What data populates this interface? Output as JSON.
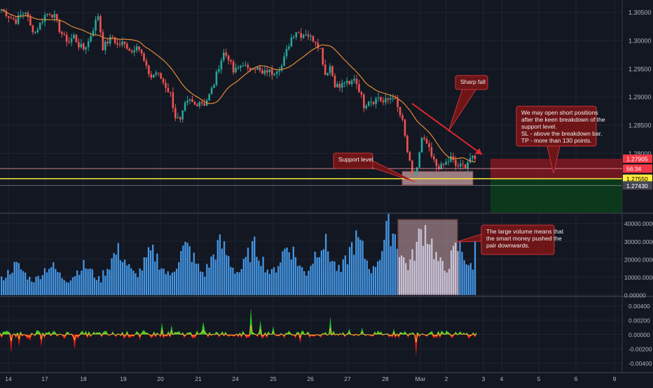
{
  "chart_data": {
    "type": "candlestick",
    "x_axis": {
      "ticks": [
        "14",
        "17",
        "18",
        "19",
        "20",
        "21",
        "24",
        "25",
        "26",
        "27",
        "28",
        "Mar",
        "2",
        "3",
        "4",
        "5",
        "6",
        "9"
      ]
    },
    "price_panel": {
      "y_ticks": [
        "1.30500",
        "1.30000",
        "1.29500",
        "1.29000",
        "1.28500",
        "1.28000"
      ],
      "ylim": [
        1.2695,
        1.3072
      ],
      "support_level": 1.2755,
      "price_labels": [
        {
          "text": "1.27905",
          "value": 1.27905,
          "color": "#f23645",
          "text_color": "#ffffff"
        },
        {
          "text": "56:34",
          "value": 1.2773,
          "color": "#f23645",
          "text_color": "#ffffff"
        },
        {
          "text": "1.27550",
          "value": 1.2755,
          "color": "#ffeb3b",
          "text_color": "#000000"
        },
        {
          "text": "1.27430",
          "value": 1.2743,
          "color": "#434651",
          "text_color": "#ffffff"
        }
      ],
      "close_path": [
        1.3055,
        1.3048,
        1.304,
        1.3035,
        1.3045,
        1.3052,
        1.3025,
        1.3015,
        1.303,
        1.3045,
        1.305,
        1.3042,
        1.302,
        1.3005,
        1.2998,
        1.3008,
        1.2992,
        1.2985,
        1.2998,
        1.3022,
        1.3045,
        1.2988,
        1.2998,
        1.3006,
        1.2992,
        1.2995,
        1.299,
        1.298,
        1.2995,
        1.2975,
        1.295,
        1.2935,
        1.2944,
        1.2933,
        1.2919,
        1.2905,
        1.2865,
        1.2856,
        1.2885,
        1.2893,
        1.2886,
        1.2893,
        1.2888,
        1.2903,
        1.2924,
        1.2955,
        1.2978,
        1.297,
        1.2944,
        1.2951,
        1.296,
        1.2947,
        1.2955,
        1.295,
        1.2939,
        1.2947,
        1.2943,
        1.295,
        1.2955,
        1.2981,
        1.3006,
        1.3017,
        1.301,
        1.3014,
        1.3005,
        1.3,
        1.2985,
        1.294,
        1.2955,
        1.2923,
        1.2917,
        1.2927,
        1.292,
        1.2935,
        1.2914,
        1.2885,
        1.2895,
        1.2893,
        1.29,
        1.289,
        1.2895,
        1.2903,
        1.288,
        1.2855,
        1.2803,
        1.276,
        1.2775,
        1.2824,
        1.2817,
        1.2793,
        1.2778,
        1.2776,
        1.2783,
        1.2792,
        1.2778,
        1.2777,
        1.2779,
        1.2792,
        1.2788
      ]
    },
    "volume_panel": {
      "y_ticks": [
        "40000.00000",
        "30000.00000",
        "20000.00000",
        "10000.00000",
        "0.00000"
      ],
      "ylim": [
        0,
        43000
      ],
      "session_peaks": [
        17000,
        17000,
        17000,
        27000,
        26000,
        30000,
        32000,
        30000,
        31000,
        34000,
        35000,
        44000,
        44000,
        30000
      ],
      "highlight_range": [
        "28",
        "Mar"
      ]
    },
    "oscillator_panel": {
      "y_ticks": [
        "0.00400",
        "0.00200",
        "0.00000",
        "-0.00200",
        "-0.00400"
      ],
      "ylim": [
        -0.0052,
        0.0052
      ],
      "colors": {
        "positive": "#26c926",
        "negative": "#e21818",
        "line": "#f5b62e"
      }
    },
    "annotations": {
      "sharp_fall": "Sharp fall",
      "support_level": "Support level",
      "short_plan": [
        "We may open short positions",
        "after the keen breakdown of the",
        "support level.",
        "SL - above the breakdown bar.",
        "TP - more than 130 points."
      ],
      "volume_note": [
        "The large volume means that",
        "the smart money pushed the",
        "pair downwards."
      ]
    },
    "trade_box": {
      "stop": 1.27905,
      "entry": 1.2755,
      "target": 1.2742,
      "risk_color": "#801922",
      "reward_color": "#0c3d1c"
    },
    "colors": {
      "up": "#26a69a",
      "down": "#ef5350",
      "ma": "#e38a35",
      "volume": "#4497e6",
      "support_line": "#ffeb3b",
      "highlight_fill": "#f4c3c3",
      "callout_fill": "#6e1518",
      "callout_border": "#c9343a"
    }
  }
}
